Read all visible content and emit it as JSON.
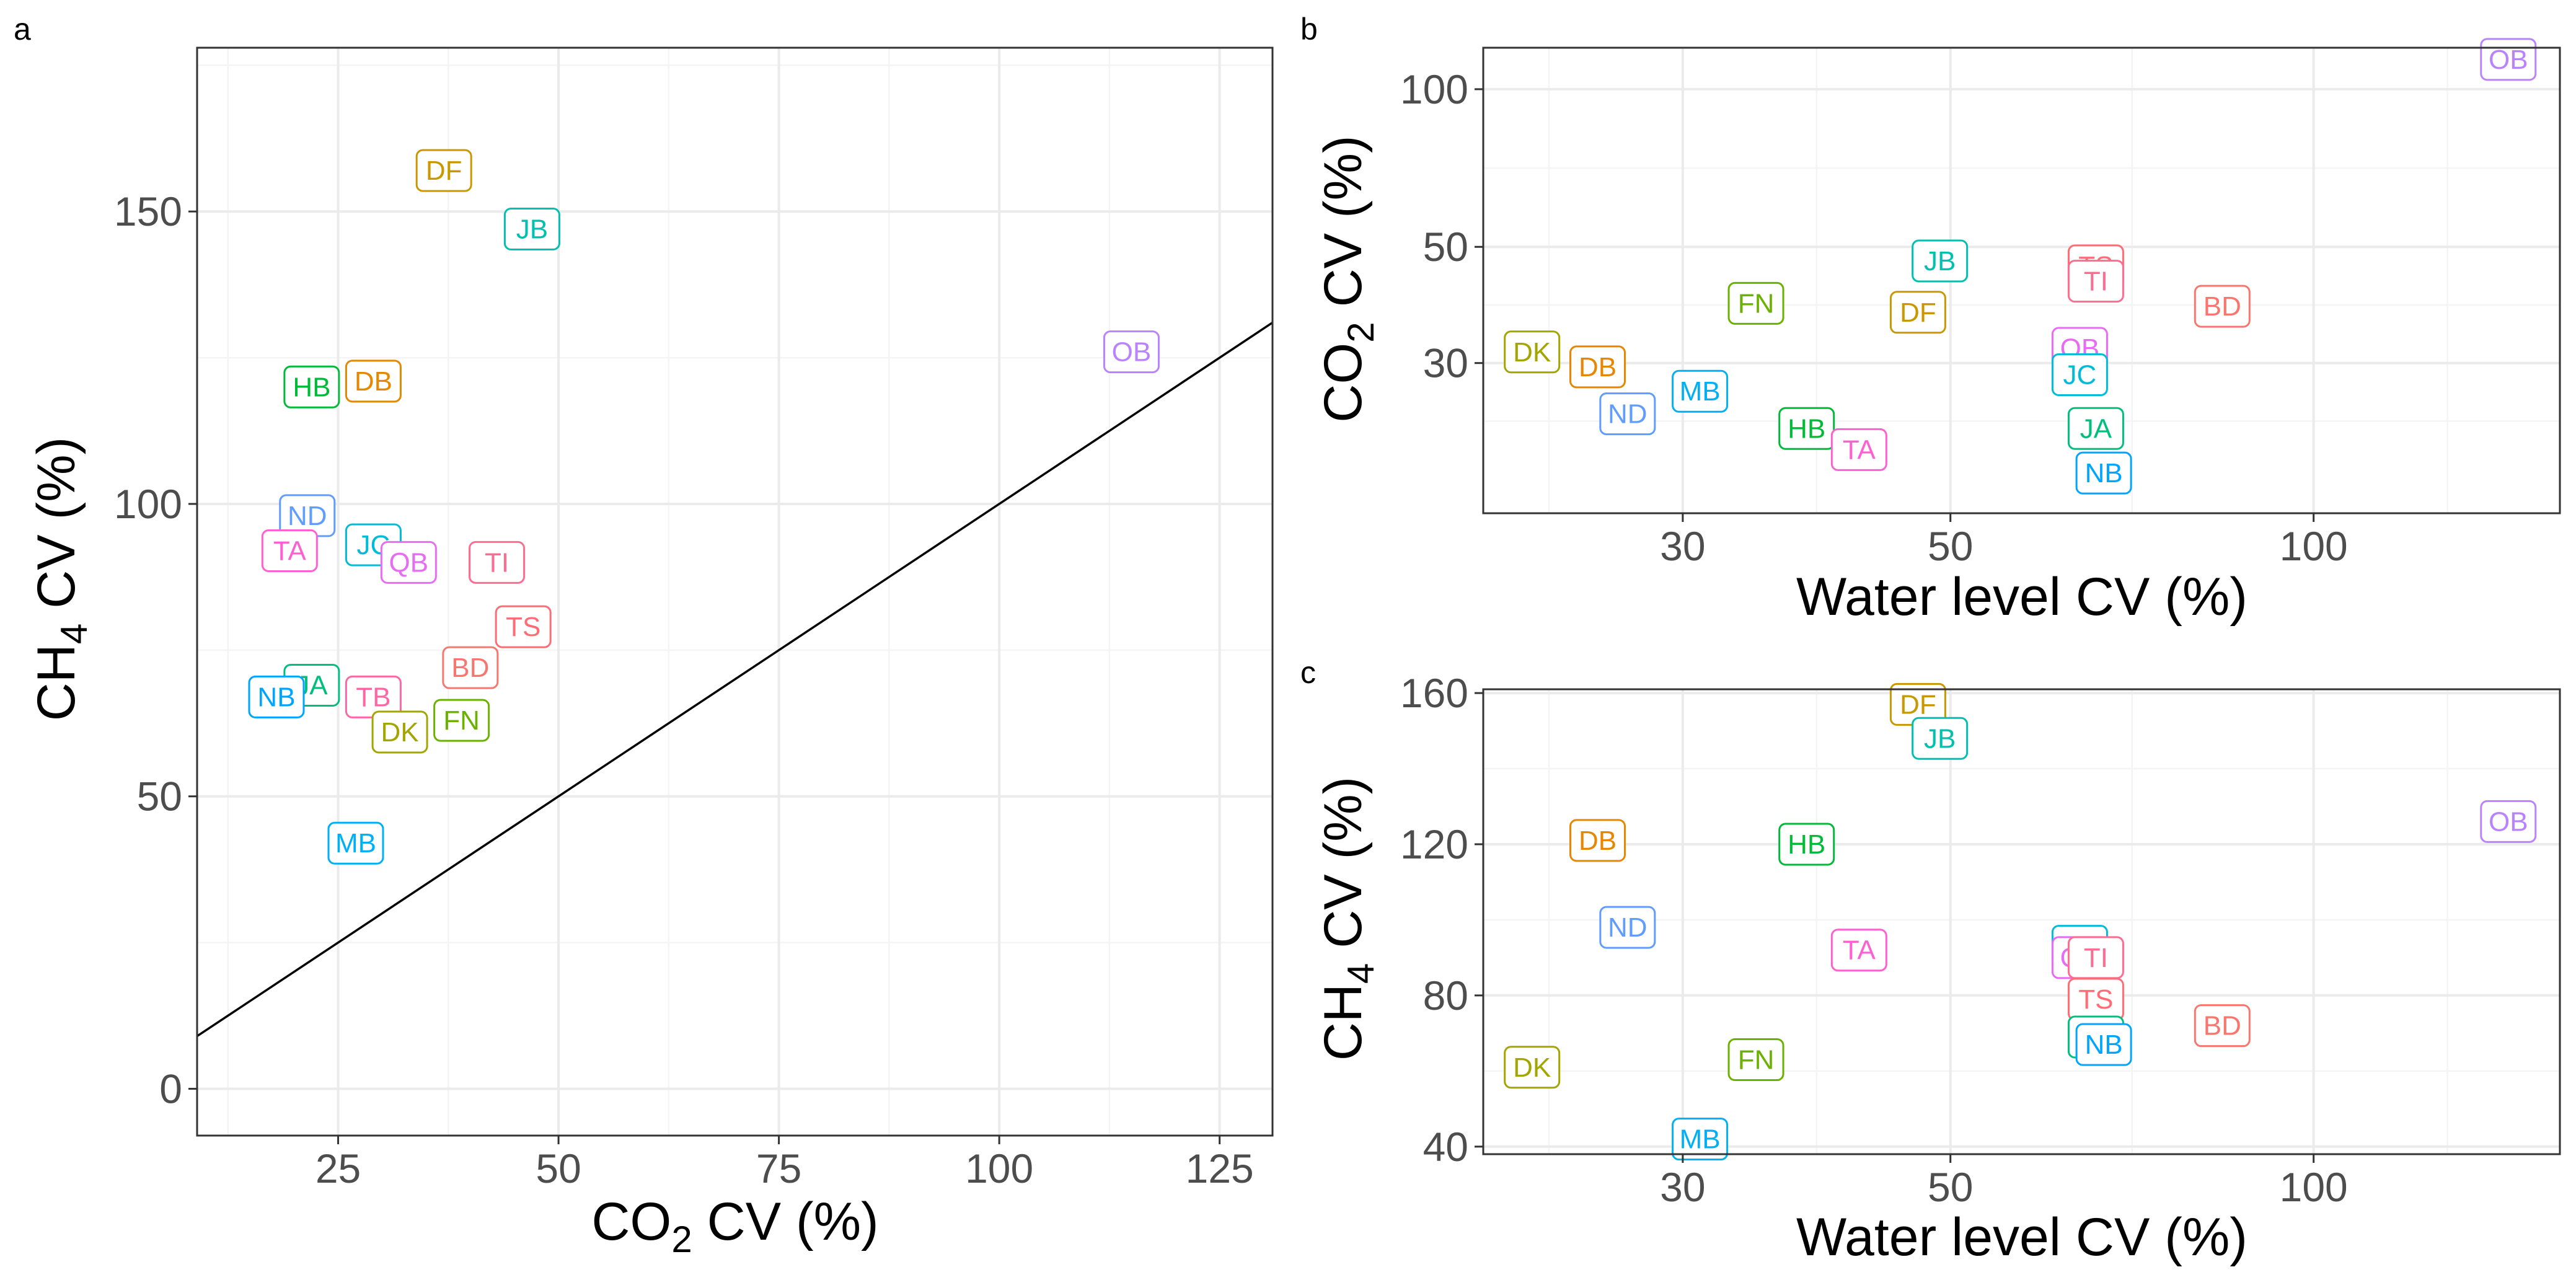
{
  "colors": {
    "BD": "#F8766D",
    "DB": "#E58700",
    "DF": "#C99800",
    "DK": "#A3A500",
    "FN": "#6BB100",
    "HB": "#00BA38",
    "JA": "#00BF7D",
    "JB": "#00C0AF",
    "JC": "#00BCD8",
    "MB": "#00B0F6",
    "NB": "#00A5FF",
    "ND": "#619CFF",
    "OB": "#B983FF",
    "QB": "#E76BF3",
    "TA": "#FD61D1",
    "TB": "#FF67A4",
    "TI": "#FF6C91",
    "TS": "#FF6C75"
  },
  "chart_data": [
    {
      "panel": "a",
      "type": "scatter",
      "xlabel": "CO2 CV (%)",
      "ylabel": "CH4 CV (%)",
      "xlim": [
        9,
        131
      ],
      "ylim": [
        -8,
        178
      ],
      "xticks": [
        25,
        50,
        75,
        100,
        125
      ],
      "yticks": [
        0,
        50,
        100,
        150
      ],
      "grid": true,
      "reference_line": "y = x",
      "points": [
        {
          "label": "DF",
          "x": 37,
          "y": 157
        },
        {
          "label": "JB",
          "x": 47,
          "y": 147
        },
        {
          "label": "OB",
          "x": 115,
          "y": 126
        },
        {
          "label": "HB",
          "x": 22,
          "y": 120
        },
        {
          "label": "DB",
          "x": 29,
          "y": 121
        },
        {
          "label": "ND",
          "x": 21.5,
          "y": 98
        },
        {
          "label": "JC",
          "x": 29,
          "y": 93
        },
        {
          "label": "TA",
          "x": 19.5,
          "y": 92
        },
        {
          "label": "QB",
          "x": 33,
          "y": 90
        },
        {
          "label": "TI",
          "x": 43,
          "y": 90
        },
        {
          "label": "TS",
          "x": 46,
          "y": 79
        },
        {
          "label": "BD",
          "x": 40,
          "y": 72
        },
        {
          "label": "JA",
          "x": 22,
          "y": 69
        },
        {
          "label": "NB",
          "x": 18,
          "y": 67
        },
        {
          "label": "TB",
          "x": 29,
          "y": 67
        },
        {
          "label": "FN",
          "x": 39,
          "y": 63
        },
        {
          "label": "DK",
          "x": 32,
          "y": 61
        },
        {
          "label": "MB",
          "x": 27,
          "y": 42
        }
      ]
    },
    {
      "panel": "b",
      "type": "scatter",
      "xlabel": "Water level CV (%)",
      "ylabel": "CO2 CV (%)",
      "x_scale": "log",
      "y_scale": "log",
      "xlim": [
        20.5,
        160
      ],
      "ylim": [
        15.5,
        120
      ],
      "xticks": [
        30,
        50,
        100
      ],
      "yticks": [
        30,
        50,
        100
      ],
      "grid": true,
      "points": [
        {
          "label": "OB",
          "x": 145,
          "y": 114
        },
        {
          "label": "JB",
          "x": 49,
          "y": 47
        },
        {
          "label": "TS",
          "x": 66,
          "y": 46
        },
        {
          "label": "TI",
          "x": 66,
          "y": 43
        },
        {
          "label": "FN",
          "x": 34.5,
          "y": 39
        },
        {
          "label": "BD",
          "x": 84,
          "y": 38.5
        },
        {
          "label": "DF",
          "x": 47,
          "y": 37.5
        },
        {
          "label": "DK",
          "x": 22.5,
          "y": 31.5
        },
        {
          "label": "QB",
          "x": 64,
          "y": 32
        },
        {
          "label": "DB",
          "x": 25.5,
          "y": 29.5
        },
        {
          "label": "JC",
          "x": 64,
          "y": 28.5
        },
        {
          "label": "MB",
          "x": 31,
          "y": 26.5
        },
        {
          "label": "ND",
          "x": 27,
          "y": 24
        },
        {
          "label": "HB",
          "x": 38,
          "y": 22.5
        },
        {
          "label": "JA",
          "x": 66,
          "y": 22.5
        },
        {
          "label": "TA",
          "x": 42,
          "y": 20.5
        },
        {
          "label": "NB",
          "x": 67,
          "y": 18.5
        }
      ]
    },
    {
      "panel": "c",
      "type": "scatter",
      "xlabel": "Water level CV (%)",
      "ylabel": "CH4 CV (%)",
      "x_scale": "log",
      "xlim": [
        20.5,
        160
      ],
      "ylim": [
        38,
        161
      ],
      "xticks": [
        30,
        50,
        100
      ],
      "yticks": [
        40,
        80,
        120,
        160
      ],
      "grid": true,
      "points": [
        {
          "label": "DF",
          "x": 47,
          "y": 157
        },
        {
          "label": "JB",
          "x": 49,
          "y": 148
        },
        {
          "label": "OB",
          "x": 145,
          "y": 126
        },
        {
          "label": "DB",
          "x": 25.5,
          "y": 121
        },
        {
          "label": "HB",
          "x": 38,
          "y": 120
        },
        {
          "label": "ND",
          "x": 27,
          "y": 98
        },
        {
          "label": "JC",
          "x": 64,
          "y": 93
        },
        {
          "label": "TA",
          "x": 42,
          "y": 92
        },
        {
          "label": "QB",
          "x": 64,
          "y": 90
        },
        {
          "label": "TI",
          "x": 66,
          "y": 90
        },
        {
          "label": "TS",
          "x": 66,
          "y": 79
        },
        {
          "label": "BD",
          "x": 84,
          "y": 72
        },
        {
          "label": "JA",
          "x": 66,
          "y": 69
        },
        {
          "label": "NB",
          "x": 67,
          "y": 67
        },
        {
          "label": "FN",
          "x": 34.5,
          "y": 63
        },
        {
          "label": "DK",
          "x": 22.5,
          "y": 61
        },
        {
          "label": "MB",
          "x": 31,
          "y": 42
        }
      ]
    }
  ],
  "panel_tags": [
    "a",
    "b",
    "c"
  ],
  "axis_text": {
    "cv_suffix": " CV (%)",
    "water_level_label": "Water level CV (%)",
    "ch4_base": "CH",
    "ch4_sub": "4",
    "co2_base": "CO",
    "co2_sub": "2"
  }
}
